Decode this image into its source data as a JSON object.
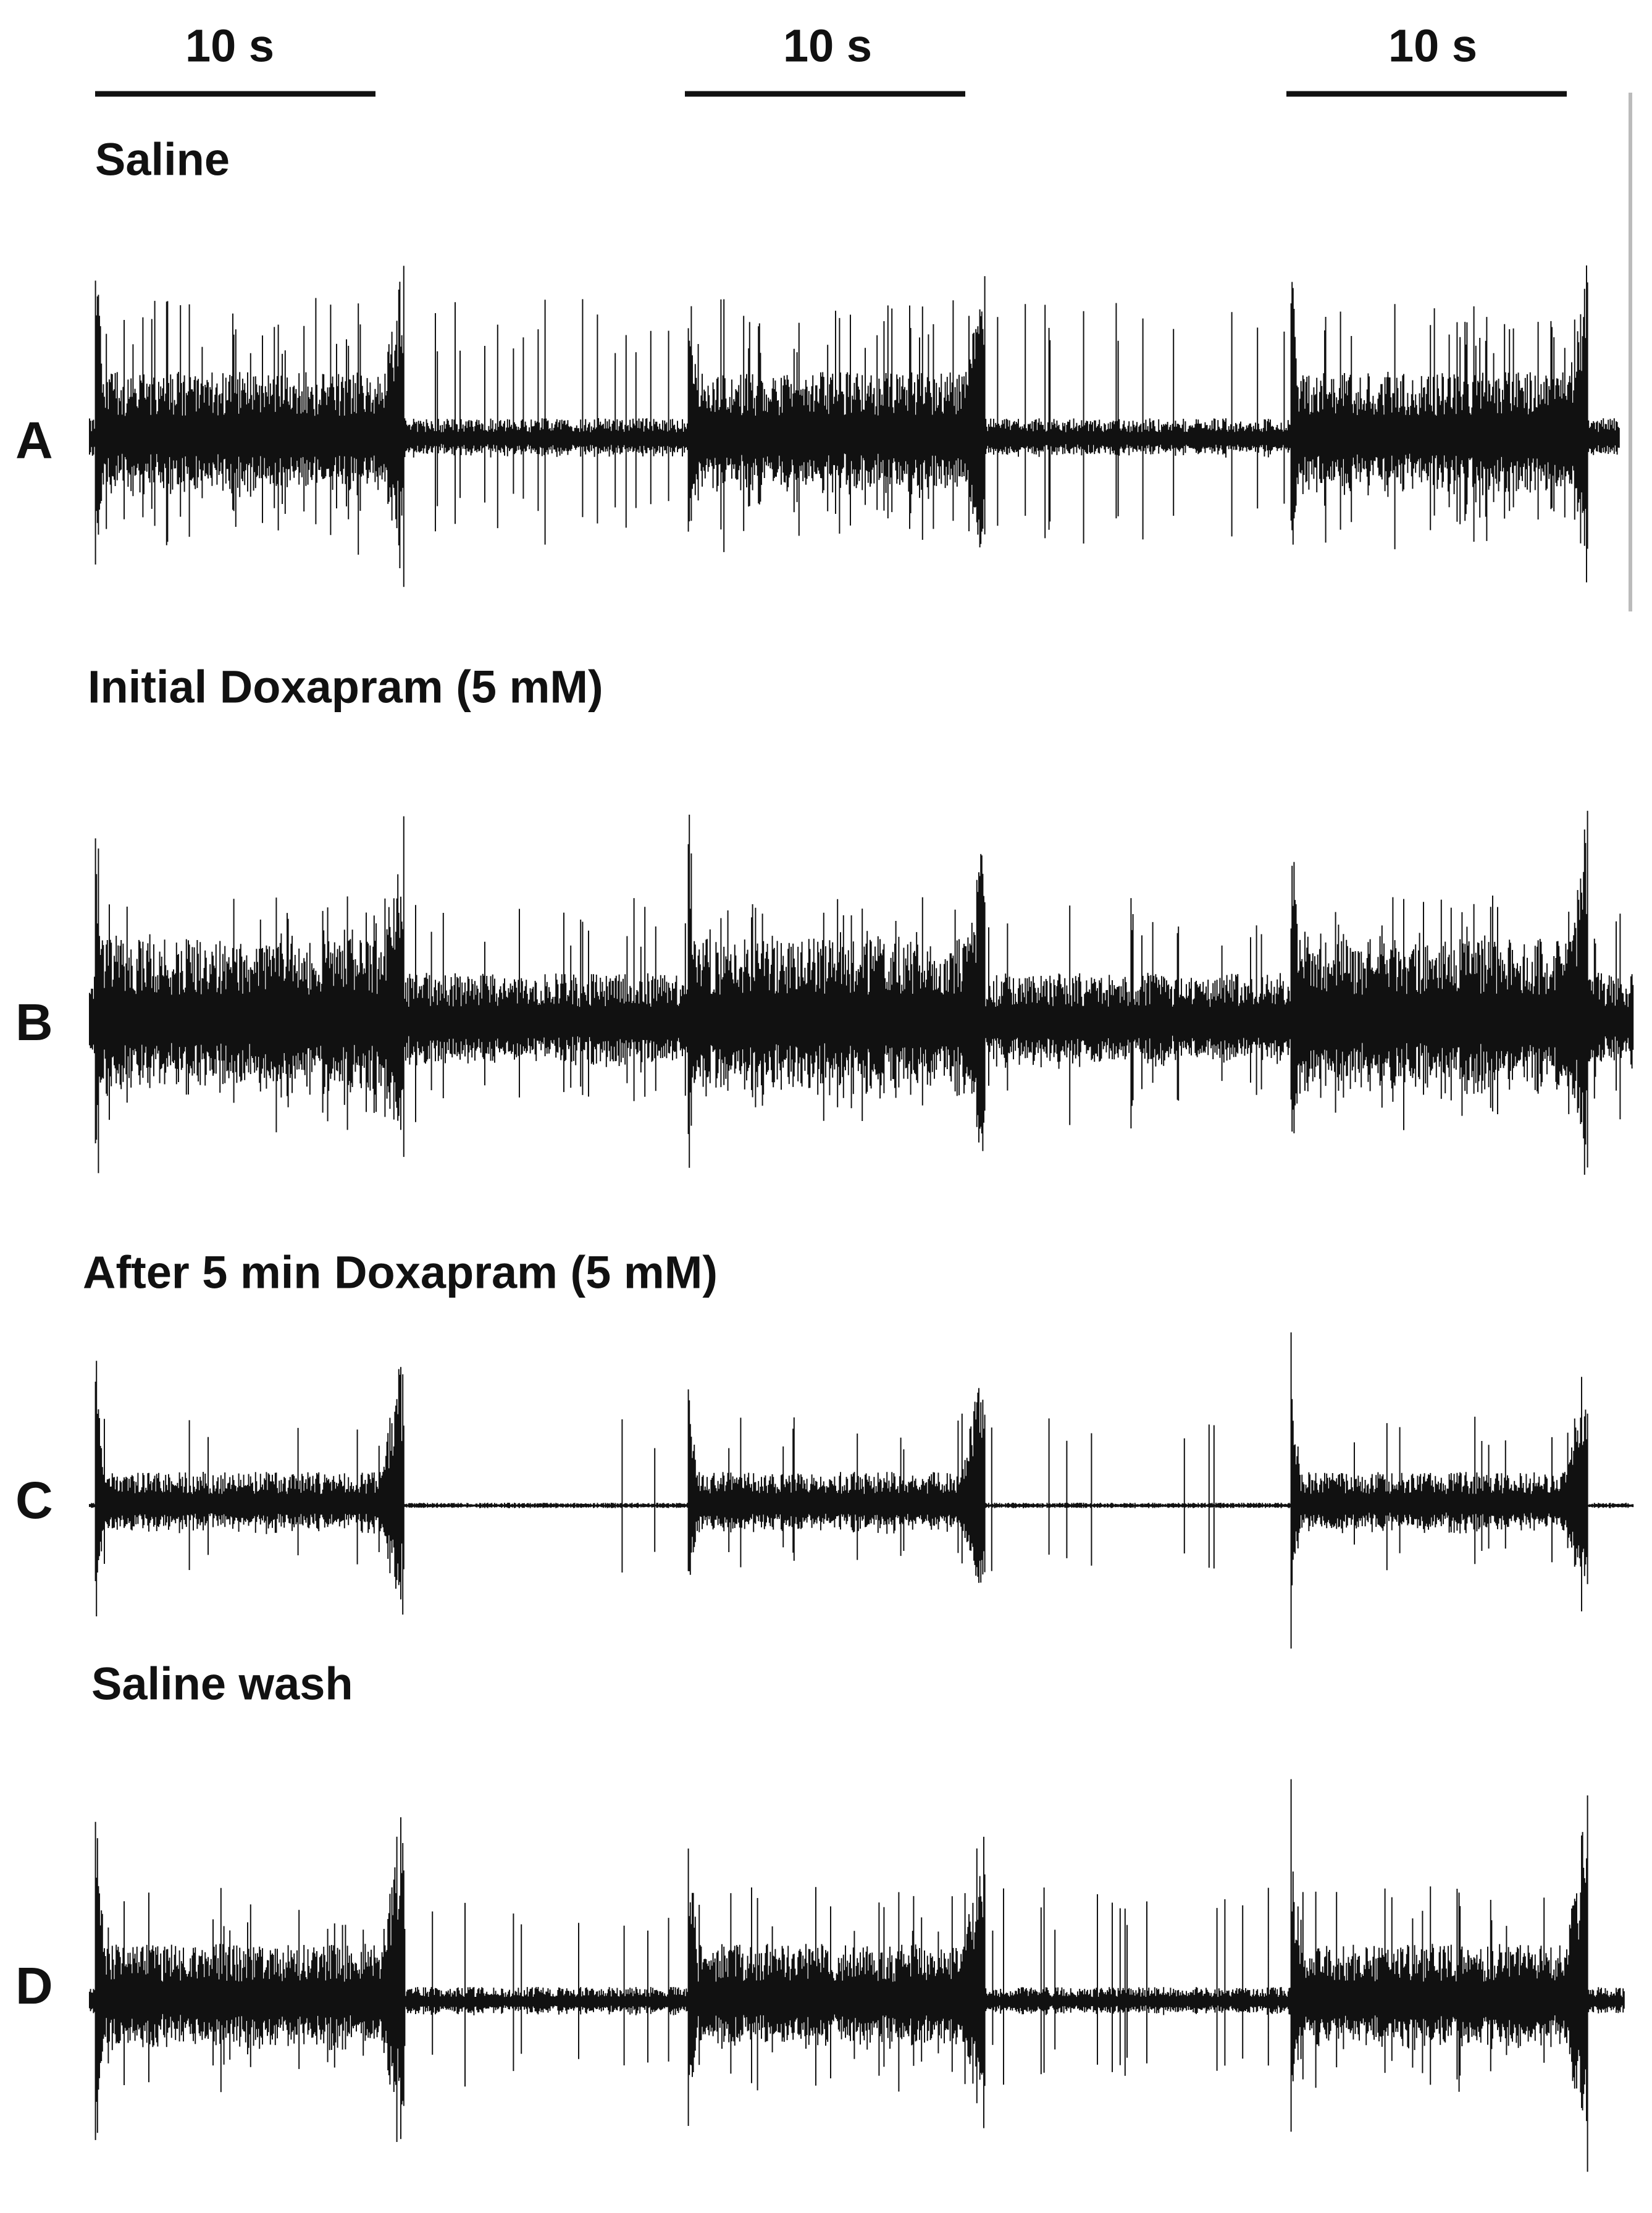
{
  "scale_bars": [
    "10 s",
    "10 s",
    "10 s"
  ],
  "panels": [
    {
      "label": "A",
      "title": "Saline"
    },
    {
      "label": "B",
      "title": "Initial Doxapram (5 mM)"
    },
    {
      "label": "C",
      "title": "After  5 min  Doxapram (5 mM)"
    },
    {
      "label": "D",
      "title": "Saline wash"
    }
  ]
}
